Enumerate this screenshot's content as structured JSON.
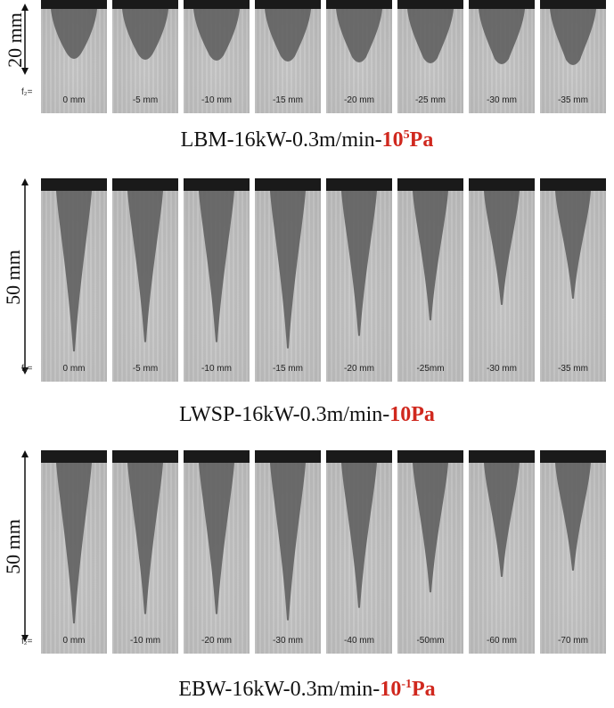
{
  "fz_label": "f₂=",
  "rows": [
    {
      "scale_label": "20 mm",
      "values": [
        "0 mm",
        "-5 mm",
        "-10 mm",
        "-15 mm",
        "-20 mm",
        "-25 mm",
        "-30 mm",
        "-35 mm"
      ],
      "caption_prefix": "LBM-16kW-0.3m/min-",
      "caption_base": "10",
      "caption_sup": "5",
      "caption_unit": "Pa"
    },
    {
      "scale_label": "50 mm",
      "values": [
        "0 mm",
        "-5 mm",
        "-10 mm",
        "-15 mm",
        "-20 mm",
        "-25mm",
        "-30 mm",
        "-35 mm"
      ],
      "caption_prefix": "LWSP-16kW-0.3m/min-",
      "caption_base": "10Pa",
      "caption_sup": "",
      "caption_unit": ""
    },
    {
      "scale_label": "50 mm",
      "values": [
        "0 mm",
        "-10 mm",
        "-20 mm",
        "-30 mm",
        "-40 mm",
        "-50mm",
        "-60 mm",
        "-70 mm"
      ],
      "caption_prefix": "EBW-16kW-0.3m/min-",
      "caption_base": "10",
      "caption_sup": "-1",
      "caption_unit": "Pa"
    }
  ],
  "colors": {
    "accent_red": "#d0281e",
    "seam": "#5a5a5a",
    "panel_bg": "#c4c4c4"
  }
}
